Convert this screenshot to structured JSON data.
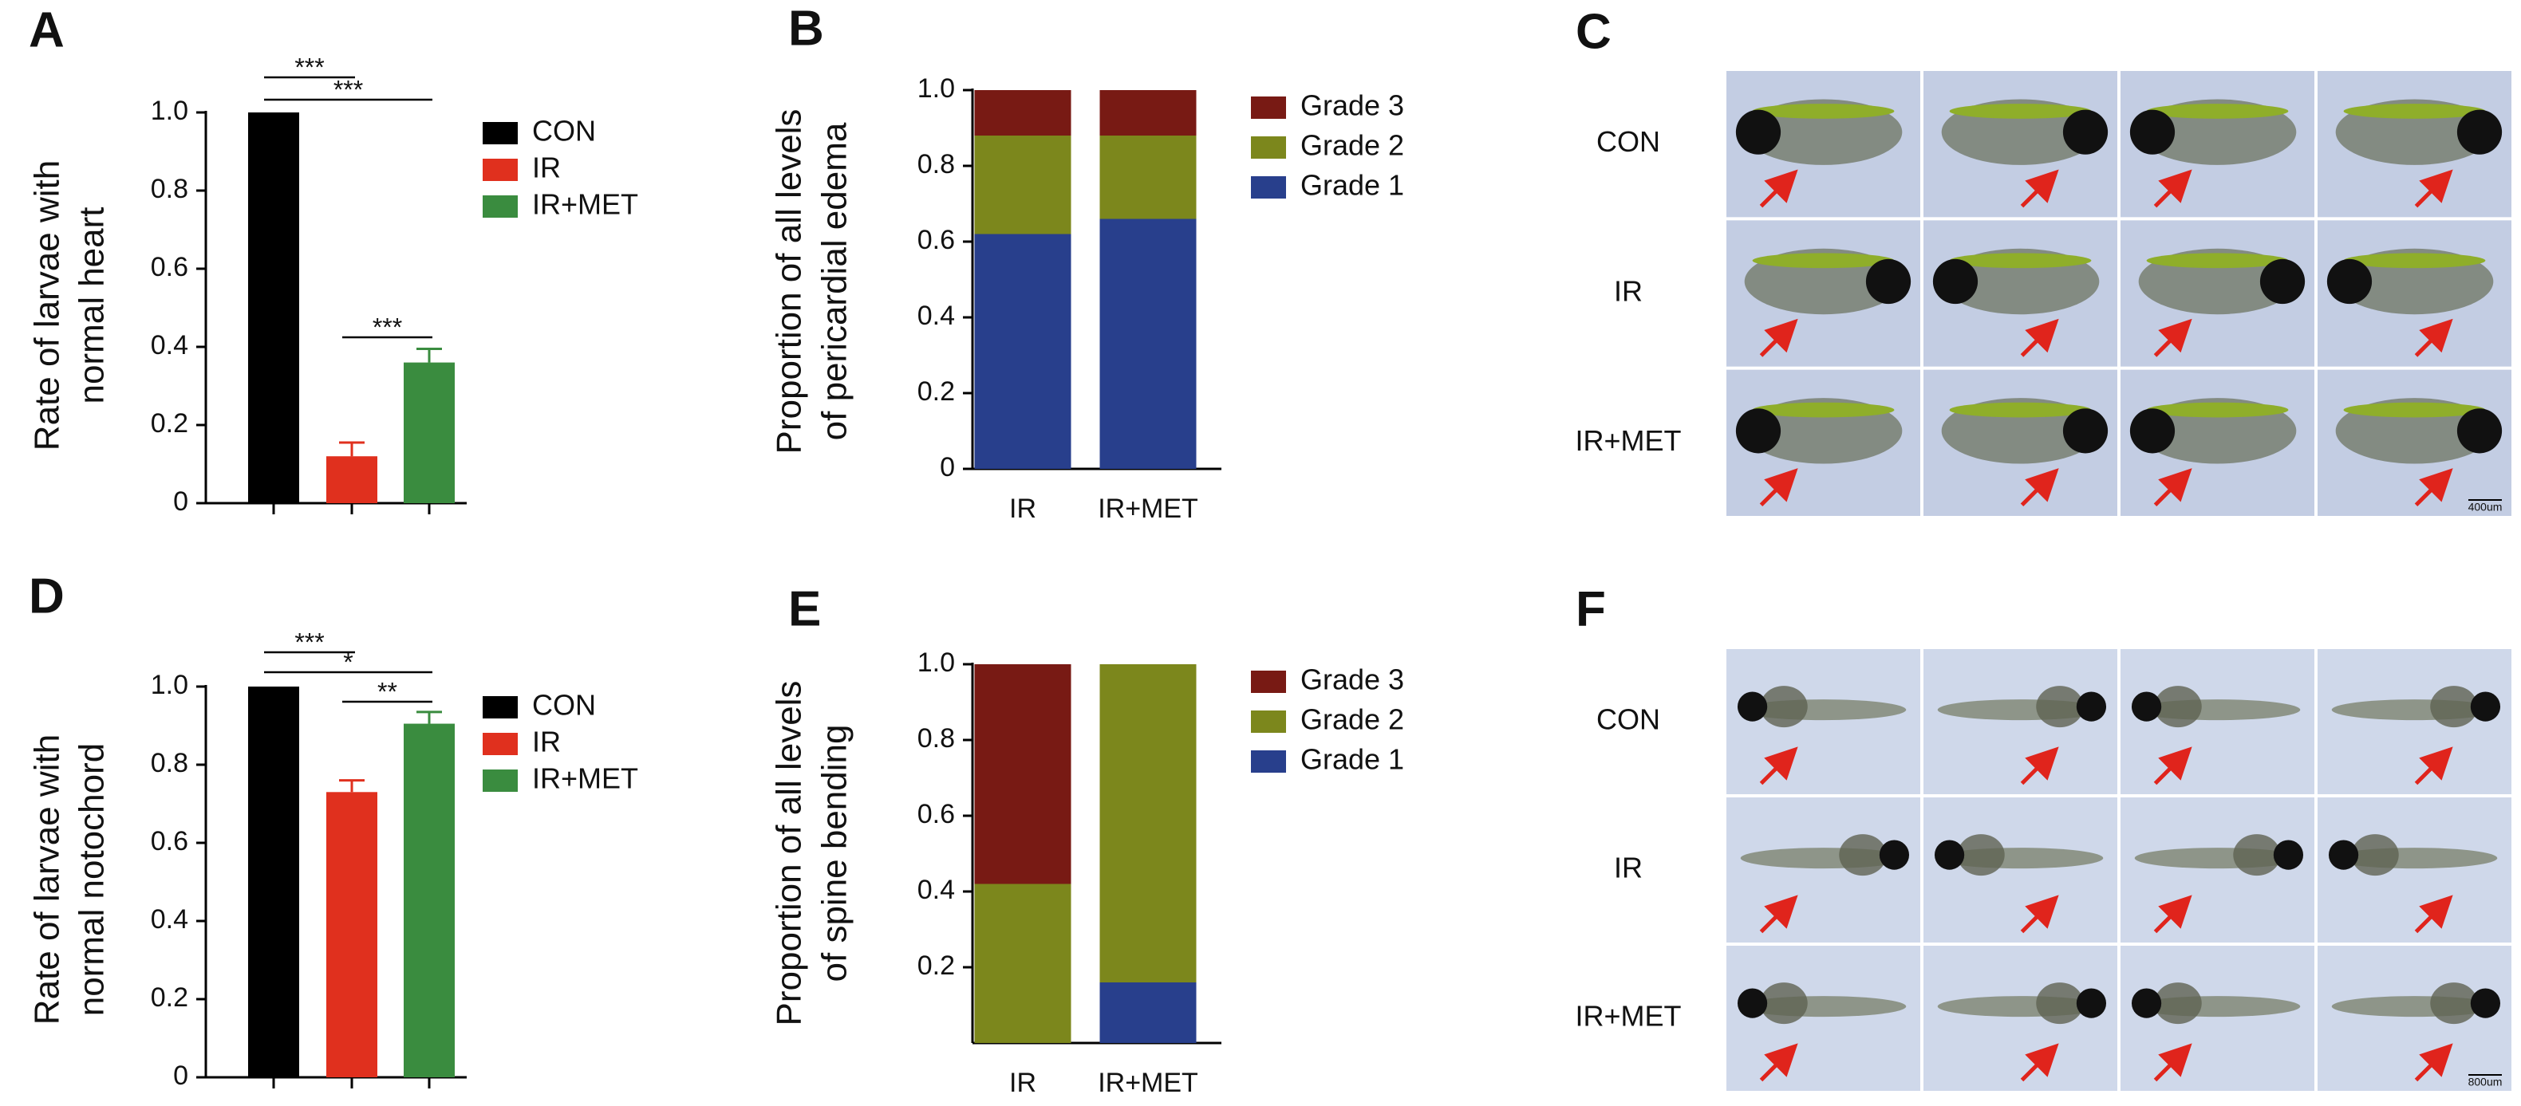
{
  "panels": [
    "A",
    "B",
    "C",
    "D",
    "E",
    "F"
  ],
  "chart_data": [
    {
      "type": "bar",
      "ylabel": [
        "Rate of  larvae with",
        "normal heart"
      ],
      "categories": [
        null,
        null,
        null
      ],
      "series": [
        {
          "name": "CON",
          "color": "#000000",
          "values": [
            1.0,
            null,
            null
          ]
        },
        {
          "name": "IR",
          "color": "#e0301e",
          "values": [
            null,
            0.12,
            null
          ],
          "errors": [
            null,
            0.035,
            null
          ]
        },
        {
          "name": "IR+MET",
          "color": "#3a8c3f",
          "values": [
            null,
            null,
            0.36
          ],
          "errors": [
            null,
            null,
            0.035
          ]
        }
      ],
      "ylim": [
        0,
        1
      ],
      "yticks": [
        0,
        0.2,
        0.4,
        0.6,
        0.8,
        {
          "value": 1,
          "label": "1.0"
        }
      ],
      "annotations": [
        "***",
        "***",
        "***"
      ]
    },
    {
      "type": "stacked_bar",
      "ylabel": [
        "Proportion of all levels",
        "of pericardial edema"
      ],
      "categories": [
        "IR",
        "IR+MET"
      ],
      "series": [
        {
          "name": "Grade 1",
          "color": "#283f8c",
          "values": [
            0.62,
            0.66
          ]
        },
        {
          "name": "Grade 2",
          "color": "#7c871c",
          "values": [
            0.26,
            0.22
          ]
        },
        {
          "name": "Grade 3",
          "color": "#781a14",
          "values": [
            0.12,
            0.12
          ]
        }
      ],
      "ylim": [
        0,
        1
      ],
      "yticks": [
        0,
        0.2,
        0.4,
        0.6,
        0.8,
        {
          "value": 1,
          "label": "1.0"
        }
      ]
    },
    {
      "type": "bar",
      "ylabel": [
        "Rate of  larvae with",
        "normal notochord"
      ],
      "categories": [
        null,
        null,
        null
      ],
      "series": [
        {
          "name": "CON",
          "color": "#000000",
          "values": [
            1.0,
            null,
            null
          ]
        },
        {
          "name": "IR",
          "color": "#e0301e",
          "values": [
            null,
            0.73,
            null
          ],
          "errors": [
            null,
            0.03,
            null
          ]
        },
        {
          "name": "IR+MET",
          "color": "#3a8c3f",
          "values": [
            null,
            null,
            0.905
          ],
          "errors": [
            null,
            null,
            0.03
          ]
        }
      ],
      "ylim": [
        0,
        1
      ],
      "yticks": [
        0,
        0.2,
        0.4,
        0.6,
        0.8,
        {
          "value": 1,
          "label": "1.0"
        }
      ],
      "annotations": [
        "***",
        "*",
        "**"
      ]
    },
    {
      "type": "stacked_bar",
      "ylabel": [
        "Proportion of all levels",
        "of spine bending"
      ],
      "categories": [
        "IR",
        "IR+MET"
      ],
      "series": [
        {
          "name": "Grade 1",
          "color": "#283f8c",
          "values": [
            0,
            0.16
          ]
        },
        {
          "name": "Grade 2",
          "color": "#7c871c",
          "values": [
            0.42,
            0.84
          ]
        },
        {
          "name": "Grade 3",
          "color": "#781a14",
          "values": [
            0.58,
            0
          ]
        }
      ],
      "ylim": [
        0,
        1
      ],
      "yticks": [
        0.2,
        0.4,
        0.6,
        0.8,
        {
          "value": 1,
          "label": "1.0"
        }
      ]
    }
  ],
  "images": [
    {
      "rows": [
        "CON",
        "IR",
        "IR+MET"
      ],
      "scale_bar": "400um"
    },
    {
      "rows": [
        "CON",
        "IR",
        "IR+MET"
      ],
      "scale_bar": "800um"
    }
  ]
}
